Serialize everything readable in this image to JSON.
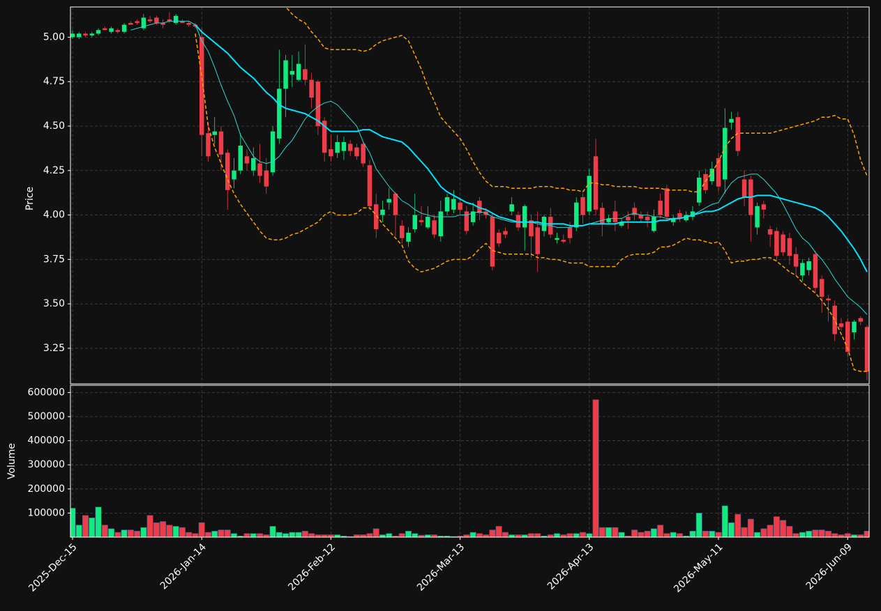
{
  "chart_data": {
    "type": "candlestick",
    "ylabel": "Price",
    "volume_ylabel": "Volume",
    "up_color": "#10ea80",
    "down_color": "#ee3d48",
    "grid": true,
    "categories": [
      "2025-Dec-15",
      null,
      null,
      null,
      null,
      null,
      null,
      null,
      null,
      null,
      null,
      null,
      null,
      null,
      null,
      null,
      null,
      null,
      null,
      null,
      "2026-Jan-14",
      null,
      null,
      null,
      null,
      null,
      null,
      null,
      null,
      null,
      null,
      null,
      null,
      null,
      null,
      null,
      null,
      null,
      null,
      null,
      "2026-Feb-12",
      null,
      null,
      null,
      null,
      null,
      null,
      null,
      null,
      null,
      null,
      null,
      null,
      null,
      null,
      null,
      null,
      null,
      null,
      null,
      "2026-Mar-13",
      null,
      null,
      null,
      null,
      null,
      null,
      null,
      null,
      null,
      null,
      null,
      null,
      null,
      null,
      null,
      null,
      null,
      null,
      null,
      "2026-Apr-13",
      null,
      null,
      null,
      null,
      null,
      null,
      null,
      null,
      null,
      null,
      null,
      null,
      null,
      null,
      null,
      null,
      null,
      null,
      null,
      "2026-May-11",
      null,
      null,
      null,
      null,
      null,
      null,
      null,
      null,
      null,
      null,
      null,
      null,
      null,
      null,
      null,
      null,
      null,
      null,
      null,
      "2026-Jun-09",
      null,
      null,
      null
    ],
    "open": [
      5.0,
      5.0,
      5.02,
      5.01,
      5.02,
      5.05,
      5.03,
      5.04,
      5.03,
      5.08,
      5.09,
      5.05,
      5.1,
      5.11,
      5.08,
      5.1,
      5.08,
      5.09,
      5.08,
      5.07,
      5.0,
      4.46,
      4.45,
      4.47,
      4.35,
      4.2,
      4.25,
      4.33,
      4.25,
      4.29,
      4.25,
      4.24,
      4.43,
      4.71,
      4.79,
      4.76,
      4.82,
      4.76,
      4.75,
      4.53,
      4.37,
      4.35,
      4.36,
      4.4,
      4.38,
      4.4,
      4.28,
      4.06,
      4.0,
      4.07,
      4.12,
      3.94,
      3.85,
      3.92,
      3.97,
      3.93,
      3.97,
      3.88,
      4.02,
      4.03,
      4.07,
      4.02,
      3.96,
      4.08,
      4.02,
      3.99,
      3.9,
      3.91,
      4.02,
      4.0,
      3.93,
      3.97,
      3.93,
      3.91,
      3.99,
      3.86,
      3.86,
      3.93,
      3.93,
      4.1,
      4.02,
      4.33,
      4.04,
      3.96,
      4.02,
      3.94,
      3.99,
      4.04,
      4.0,
      3.99,
      3.91,
      4.08,
      4.15,
      3.96,
      4.01,
      3.97,
      3.99,
      4.07,
      4.23,
      4.19,
      4.32,
      4.2,
      4.52,
      4.55,
      4.2,
      4.2,
      3.93,
      4.06,
      3.92,
      3.91,
      3.89,
      3.87,
      3.78,
      3.66,
      3.69,
      3.78,
      3.64,
      3.53,
      3.49,
      3.39,
      3.4,
      3.34,
      3.42,
      3.37
    ],
    "high": [
      5.04,
      5.03,
      5.03,
      5.03,
      5.05,
      5.06,
      5.06,
      5.05,
      5.08,
      5.09,
      5.1,
      5.13,
      5.12,
      5.12,
      5.1,
      5.14,
      5.13,
      5.1,
      5.09,
      5.08,
      5.05,
      4.52,
      4.55,
      4.5,
      4.37,
      4.32,
      4.46,
      4.37,
      4.38,
      4.4,
      4.32,
      4.5,
      4.93,
      4.9,
      4.9,
      4.92,
      4.96,
      4.8,
      4.76,
      4.55,
      4.45,
      4.45,
      4.44,
      4.42,
      4.4,
      4.41,
      4.31,
      4.12,
      4.08,
      4.15,
      4.13,
      3.97,
      3.93,
      4.12,
      4.05,
      4.05,
      4.0,
      4.08,
      4.12,
      4.14,
      4.1,
      4.05,
      4.07,
      4.1,
      4.04,
      4.01,
      3.92,
      3.93,
      4.1,
      4.02,
      4.06,
      4.0,
      4.02,
      4.0,
      4.04,
      3.9,
      3.89,
      3.96,
      4.1,
      4.12,
      4.26,
      4.43,
      4.07,
      4.0,
      4.08,
      3.98,
      4.02,
      4.07,
      4.02,
      4.02,
      4.03,
      4.12,
      4.17,
      4.0,
      4.03,
      4.02,
      4.05,
      4.25,
      4.26,
      4.3,
      4.35,
      4.6,
      4.58,
      4.58,
      4.25,
      4.22,
      4.07,
      4.08,
      3.94,
      3.93,
      3.91,
      3.9,
      3.82,
      3.75,
      3.76,
      3.8,
      3.66,
      3.55,
      3.52,
      3.42,
      3.42,
      3.41,
      3.43,
      3.38
    ],
    "low": [
      4.99,
      4.99,
      5.0,
      5.0,
      5.01,
      5.04,
      5.02,
      5.02,
      5.02,
      5.07,
      5.07,
      5.04,
      5.08,
      5.07,
      5.05,
      5.08,
      5.07,
      5.08,
      5.06,
      5.05,
      4.33,
      4.3,
      4.4,
      4.25,
      4.03,
      4.15,
      4.23,
      4.25,
      4.22,
      4.18,
      4.12,
      4.22,
      4.4,
      4.55,
      4.72,
      4.75,
      4.73,
      4.6,
      4.45,
      4.3,
      4.3,
      4.32,
      4.31,
      4.33,
      4.31,
      4.27,
      4.03,
      3.87,
      3.96,
      4.03,
      3.88,
      3.84,
      3.82,
      3.9,
      3.94,
      3.92,
      3.87,
      3.85,
      4.0,
      4.01,
      4.0,
      3.89,
      3.94,
      3.97,
      3.98,
      3.69,
      3.82,
      3.87,
      4.0,
      3.91,
      3.8,
      3.76,
      3.68,
      3.88,
      3.87,
      3.84,
      3.84,
      3.84,
      3.91,
      3.95,
      4.0,
      4.0,
      3.88,
      3.95,
      3.91,
      3.93,
      3.92,
      3.97,
      3.96,
      3.93,
      3.9,
      3.98,
      3.97,
      3.94,
      3.96,
      3.96,
      3.97,
      4.05,
      4.12,
      4.17,
      4.13,
      4.12,
      4.48,
      4.33,
      4.05,
      3.85,
      3.89,
      3.98,
      3.82,
      3.74,
      3.77,
      3.72,
      3.66,
      3.63,
      3.66,
      3.56,
      3.45,
      3.4,
      3.29,
      3.35,
      3.2,
      3.3,
      3.38,
      3.07
    ],
    "close": [
      5.02,
      5.02,
      5.01,
      5.02,
      5.04,
      5.04,
      5.05,
      5.03,
      5.07,
      5.07,
      5.08,
      5.11,
      5.09,
      5.08,
      5.07,
      5.09,
      5.12,
      5.08,
      5.07,
      5.06,
      4.45,
      4.33,
      4.47,
      4.34,
      4.14,
      4.25,
      4.39,
      4.29,
      4.32,
      4.22,
      4.16,
      4.47,
      4.71,
      4.87,
      4.81,
      4.85,
      4.76,
      4.66,
      4.5,
      4.35,
      4.33,
      4.41,
      4.41,
      4.36,
      4.33,
      4.29,
      4.05,
      3.92,
      4.03,
      4.09,
      4.0,
      3.87,
      3.9,
      4.0,
      3.96,
      3.99,
      3.89,
      4.02,
      4.1,
      4.09,
      4.03,
      3.91,
      4.02,
      4.01,
      4.0,
      3.71,
      3.84,
      3.89,
      4.06,
      3.93,
      4.05,
      3.88,
      3.78,
      3.99,
      3.89,
      3.87,
      3.85,
      3.87,
      4.07,
      4.0,
      4.22,
      4.03,
      3.95,
      3.98,
      3.96,
      3.96,
      3.97,
      4.0,
      3.98,
      3.97,
      3.99,
      4.0,
      3.99,
      3.98,
      3.98,
      4.0,
      4.02,
      4.21,
      4.14,
      4.26,
      4.16,
      4.49,
      4.54,
      4.36,
      4.1,
      4.0,
      4.05,
      4.03,
      3.89,
      3.77,
      3.79,
      3.77,
      3.71,
      3.73,
      3.74,
      3.59,
      3.54,
      3.52,
      3.33,
      3.37,
      3.23,
      3.4,
      3.4,
      3.12
    ],
    "volume": [
      120000,
      50000,
      90000,
      80000,
      125000,
      50000,
      35000,
      20000,
      30000,
      30000,
      25000,
      40000,
      90000,
      60000,
      65000,
      50000,
      45000,
      40000,
      20000,
      15000,
      60000,
      20000,
      25000,
      30000,
      30000,
      15000,
      5000,
      15000,
      15000,
      15000,
      10000,
      45000,
      20000,
      15000,
      20000,
      20000,
      25000,
      15000,
      10000,
      10000,
      10000,
      10000,
      5000,
      3000,
      10000,
      10000,
      15000,
      35000,
      10000,
      15000,
      5000,
      15000,
      25000,
      15000,
      8000,
      10000,
      10000,
      5000,
      5000,
      3000,
      5000,
      10000,
      20000,
      15000,
      10000,
      30000,
      45000,
      20000,
      10000,
      10000,
      10000,
      15000,
      15000,
      5000,
      10000,
      15000,
      10000,
      15000,
      15000,
      20000,
      15000,
      570000,
      40000,
      40000,
      40000,
      20000,
      5000,
      30000,
      20000,
      25000,
      35000,
      50000,
      15000,
      20000,
      15000,
      5000,
      25000,
      100000,
      25000,
      25000,
      20000,
      130000,
      60000,
      95000,
      40000,
      75000,
      20000,
      35000,
      50000,
      85000,
      70000,
      45000,
      15000,
      20000,
      25000,
      30000,
      30000,
      25000,
      15000,
      10000,
      15000,
      10000,
      10000,
      25000
    ],
    "overlays": [
      {
        "color": "#ffa500",
        "linewidth": 1.5,
        "dashed": true,
        "values": [
          null,
          null,
          null,
          null,
          null,
          null,
          null,
          null,
          null,
          null,
          null,
          null,
          null,
          null,
          null,
          null,
          null,
          null,
          null,
          5.17,
          5.3,
          5.38,
          5.44,
          5.48,
          5.5,
          5.5,
          5.48,
          5.45,
          5.41,
          5.37,
          5.32,
          5.27,
          5.22,
          5.17,
          5.13,
          5.1,
          5.08,
          5.03,
          4.99,
          4.94,
          4.93,
          4.93,
          4.93,
          4.93,
          4.93,
          4.92,
          4.93,
          4.96,
          4.98,
          4.99,
          5.0,
          5.01,
          4.98,
          4.9,
          4.82,
          4.72,
          4.64,
          4.55,
          4.51,
          4.47,
          4.43,
          4.37,
          4.3,
          4.24,
          4.19,
          4.16,
          4.16,
          4.16,
          4.15,
          4.15,
          4.15,
          4.15,
          4.16,
          4.16,
          4.16,
          4.15,
          4.15,
          4.14,
          4.14,
          4.13,
          4.18,
          4.18,
          4.17,
          4.17,
          4.16,
          4.16,
          4.16,
          4.16,
          4.15,
          4.15,
          4.15,
          4.15,
          4.14,
          4.14,
          4.14,
          4.14,
          4.13,
          4.13,
          4.19,
          4.24,
          4.3,
          4.38,
          4.43,
          4.46,
          4.46,
          4.46,
          4.46,
          4.46,
          4.46,
          4.47,
          4.48,
          4.49,
          4.5,
          4.51,
          4.52,
          4.53,
          4.55,
          4.55,
          4.56,
          4.54,
          4.54,
          4.45,
          4.31,
          4.22
        ]
      },
      {
        "color": "#ffa500",
        "linewidth": 1.5,
        "dashed": true,
        "values": [
          null,
          null,
          null,
          null,
          null,
          null,
          null,
          null,
          null,
          null,
          null,
          null,
          null,
          null,
          null,
          null,
          null,
          null,
          null,
          5.02,
          4.78,
          4.5,
          4.38,
          4.29,
          4.2,
          4.12,
          4.06,
          4.01,
          3.96,
          3.91,
          3.87,
          3.86,
          3.86,
          3.87,
          3.89,
          3.9,
          3.92,
          3.94,
          3.96,
          4.0,
          4.02,
          4.0,
          4.0,
          4.0,
          4.01,
          4.04,
          4.04,
          4.0,
          3.95,
          3.91,
          3.87,
          3.83,
          3.74,
          3.7,
          3.68,
          3.69,
          3.7,
          3.72,
          3.74,
          3.75,
          3.75,
          3.75,
          3.77,
          3.81,
          3.84,
          3.8,
          3.79,
          3.78,
          3.78,
          3.78,
          3.78,
          3.78,
          3.76,
          3.76,
          3.75,
          3.75,
          3.74,
          3.73,
          3.73,
          3.73,
          3.71,
          3.71,
          3.71,
          3.71,
          3.71,
          3.75,
          3.77,
          3.78,
          3.78,
          3.78,
          3.79,
          3.82,
          3.82,
          3.83,
          3.85,
          3.87,
          3.86,
          3.86,
          3.85,
          3.84,
          3.85,
          3.8,
          3.73,
          3.74,
          3.74,
          3.75,
          3.75,
          3.76,
          3.76,
          3.74,
          3.71,
          3.68,
          3.66,
          3.62,
          3.59,
          3.56,
          3.52,
          3.47,
          3.41,
          3.33,
          3.25,
          3.13,
          3.12,
          3.12
        ]
      },
      {
        "color": "#2fd8cc",
        "linewidth": 1,
        "dashed": false,
        "values": [
          null,
          null,
          null,
          null,
          null,
          null,
          null,
          null,
          null,
          5.04,
          5.05,
          5.06,
          5.07,
          5.08,
          5.08,
          5.09,
          5.09,
          5.09,
          5.09,
          5.07,
          4.98,
          4.92,
          4.83,
          4.73,
          4.64,
          4.56,
          4.45,
          4.39,
          4.33,
          4.3,
          4.29,
          4.3,
          4.33,
          4.38,
          4.42,
          4.48,
          4.54,
          4.58,
          4.61,
          4.63,
          4.64,
          4.62,
          4.58,
          4.54,
          4.5,
          4.41,
          4.35,
          4.26,
          4.21,
          4.16,
          4.12,
          4.08,
          4.06,
          4.03,
          4.01,
          4.0,
          3.99,
          3.99,
          3.99,
          3.99,
          4.0,
          4.0,
          4.01,
          4.02,
          4.01,
          3.99,
          3.98,
          3.97,
          3.96,
          3.96,
          3.96,
          3.96,
          3.95,
          3.94,
          3.94,
          3.93,
          3.93,
          3.93,
          3.94,
          3.94,
          3.95,
          3.96,
          3.97,
          3.98,
          3.98,
          3.98,
          4.0,
          4.01,
          4.0,
          4.0,
          3.99,
          3.99,
          3.98,
          3.98,
          3.98,
          3.99,
          4.0,
          4.02,
          4.04,
          4.06,
          4.07,
          4.13,
          4.18,
          4.21,
          4.22,
          4.23,
          4.23,
          4.2,
          4.16,
          4.12,
          4.06,
          3.99,
          3.92,
          3.87,
          3.84,
          3.79,
          3.75,
          3.7,
          3.64,
          3.59,
          3.54,
          3.51,
          3.48,
          3.44
        ]
      },
      {
        "color": "#00e5ff",
        "linewidth": 2,
        "dashed": false,
        "values": [
          null,
          null,
          null,
          null,
          null,
          null,
          null,
          null,
          null,
          null,
          null,
          null,
          null,
          null,
          null,
          null,
          null,
          null,
          null,
          5.07,
          5.03,
          5.0,
          4.97,
          4.94,
          4.91,
          4.87,
          4.83,
          4.8,
          4.77,
          4.73,
          4.69,
          4.66,
          4.62,
          4.6,
          4.59,
          4.58,
          4.57,
          4.55,
          4.53,
          4.5,
          4.47,
          4.47,
          4.47,
          4.47,
          4.47,
          4.48,
          4.48,
          4.46,
          4.44,
          4.43,
          4.42,
          4.41,
          4.38,
          4.34,
          4.3,
          4.26,
          4.21,
          4.16,
          4.13,
          4.11,
          4.09,
          4.07,
          4.06,
          4.04,
          4.03,
          4.01,
          3.99,
          3.98,
          3.97,
          3.96,
          3.96,
          3.96,
          3.96,
          3.95,
          3.95,
          3.95,
          3.95,
          3.94,
          3.94,
          3.94,
          3.95,
          3.95,
          3.95,
          3.95,
          3.95,
          3.96,
          3.96,
          3.96,
          3.96,
          3.96,
          3.96,
          3.97,
          3.97,
          3.98,
          3.98,
          3.99,
          4.0,
          4.01,
          4.02,
          4.02,
          4.03,
          4.05,
          4.07,
          4.09,
          4.1,
          4.1,
          4.11,
          4.11,
          4.11,
          4.1,
          4.09,
          4.08,
          4.07,
          4.06,
          4.05,
          4.04,
          4.02,
          3.99,
          3.95,
          3.91,
          3.86,
          3.81,
          3.75,
          3.68
        ]
      }
    ],
    "ylim": [
      3.05,
      5.17
    ],
    "yticks": [
      3.25,
      {
        "value": 3.5,
        "label": "3.50"
      },
      3.75,
      {
        "value": 4,
        "label": "4.00"
      },
      4.25,
      {
        "value": 4.5,
        "label": "4.50"
      },
      4.75,
      {
        "value": 5,
        "label": "5.00"
      }
    ],
    "volume_ylim": [
      0,
      630000
    ],
    "volume_yticks": [
      100000,
      200000,
      300000,
      400000,
      500000,
      600000
    ]
  }
}
